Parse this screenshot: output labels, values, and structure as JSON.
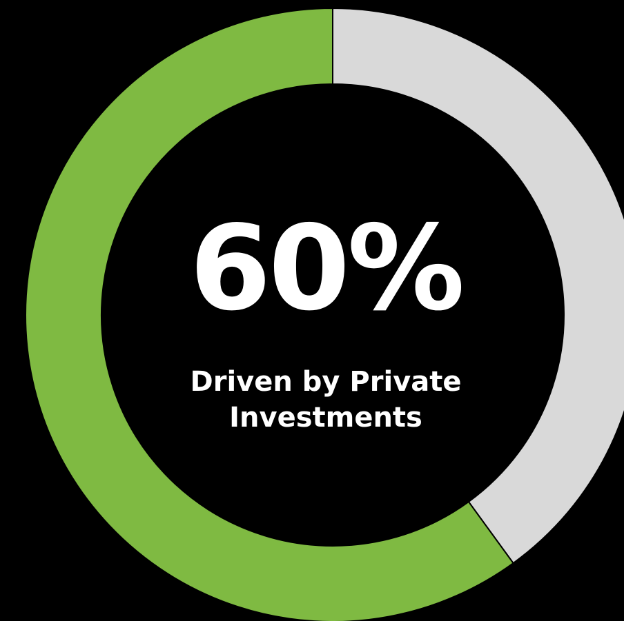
{
  "chart_data": {
    "type": "pie",
    "style": "donut",
    "slices": [
      {
        "label": "Private Investments",
        "value": 60,
        "color": "#7fba42"
      },
      {
        "label": "",
        "value": 40,
        "color": "#d9d9d9"
      }
    ],
    "center_value": "60%",
    "center_caption_line1": "Driven by Private",
    "center_caption_line2": "Investments",
    "slice_border_color": "#000000",
    "background_color": "#000000"
  }
}
